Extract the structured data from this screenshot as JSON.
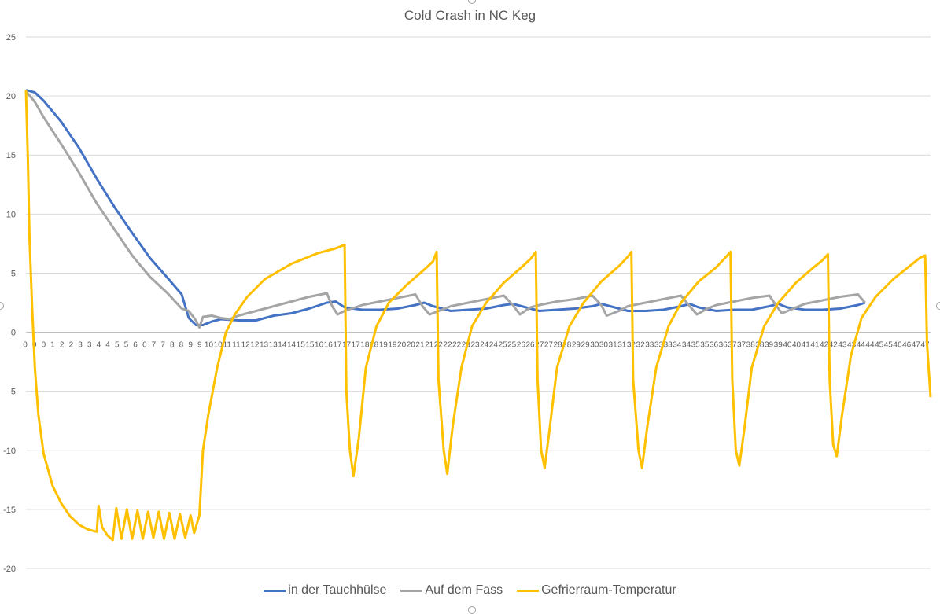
{
  "chart_data": {
    "type": "line",
    "title": "Cold Crash in NC Keg",
    "xlabel": "",
    "ylabel": "",
    "ylim": [
      -20,
      25
    ],
    "yticks": [
      25,
      20,
      15,
      10,
      5,
      0,
      -5,
      -10,
      -15,
      -20
    ],
    "x_tick_labels": [
      "0",
      "0",
      "0",
      "1",
      "2",
      "2",
      "3",
      "3",
      "4",
      "4",
      "5",
      "5",
      "6",
      "6",
      "7",
      "7",
      "8",
      "8",
      "9",
      "9",
      "10",
      "10",
      "11",
      "11",
      "12",
      "12",
      "13",
      "13",
      "14",
      "14",
      "15",
      "15",
      "16",
      "16",
      "17",
      "17",
      "17",
      "18",
      "18",
      "19",
      "19",
      "20",
      "20",
      "21",
      "21",
      "22",
      "22",
      "22",
      "23",
      "23",
      "24",
      "24",
      "25",
      "25",
      "26",
      "26",
      "27",
      "27",
      "28",
      "28",
      "29",
      "29",
      "30",
      "30",
      "31",
      "31",
      "32",
      "32",
      "33",
      "33",
      "33",
      "34",
      "34",
      "35",
      "35",
      "36",
      "36",
      "37",
      "37",
      "38",
      "38",
      "39",
      "39",
      "40",
      "40",
      "41",
      "41",
      "42",
      "42",
      "43",
      "43",
      "44",
      "44",
      "45",
      "45",
      "46",
      "46",
      "47",
      "47"
    ],
    "grid": true,
    "legend_position": "bottom",
    "series": [
      {
        "name": "in der Tauchhülse",
        "color": "#4472C4",
        "points": [
          [
            0,
            20.5
          ],
          [
            0.5,
            20.3
          ],
          [
            1,
            19.6
          ],
          [
            2,
            17.8
          ],
          [
            3,
            15.6
          ],
          [
            4,
            13.0
          ],
          [
            5,
            10.6
          ],
          [
            6,
            8.4
          ],
          [
            7,
            6.3
          ],
          [
            8,
            4.6
          ],
          [
            8.8,
            3.2
          ],
          [
            9.2,
            1.2
          ],
          [
            9.6,
            0.6
          ],
          [
            10.0,
            0.6
          ],
          [
            10.5,
            0.9
          ],
          [
            11,
            1.1
          ],
          [
            12,
            1.0
          ],
          [
            13,
            1.0
          ],
          [
            14,
            1.4
          ],
          [
            15,
            1.6
          ],
          [
            16,
            2.0
          ],
          [
            17,
            2.5
          ],
          [
            17.5,
            2.6
          ],
          [
            18,
            2.1
          ],
          [
            19,
            1.9
          ],
          [
            20,
            1.9
          ],
          [
            21,
            2.0
          ],
          [
            22,
            2.3
          ],
          [
            22.5,
            2.5
          ],
          [
            23,
            2.2
          ],
          [
            24,
            1.8
          ],
          [
            25,
            1.9
          ],
          [
            26,
            2.0
          ],
          [
            27,
            2.3
          ],
          [
            27.5,
            2.4
          ],
          [
            28,
            2.2
          ],
          [
            29,
            1.8
          ],
          [
            30,
            1.9
          ],
          [
            31,
            2.0
          ],
          [
            32,
            2.2
          ],
          [
            32.5,
            2.4
          ],
          [
            33,
            2.2
          ],
          [
            34,
            1.8
          ],
          [
            35,
            1.8
          ],
          [
            36,
            1.9
          ],
          [
            37,
            2.2
          ],
          [
            37.5,
            2.4
          ],
          [
            38,
            2.1
          ],
          [
            39,
            1.8
          ],
          [
            40,
            1.9
          ],
          [
            41,
            1.9
          ],
          [
            42,
            2.2
          ],
          [
            42.5,
            2.4
          ],
          [
            43,
            2.1
          ],
          [
            44,
            1.9
          ],
          [
            45,
            1.9
          ],
          [
            46,
            2.0
          ],
          [
            47,
            2.3
          ],
          [
            47.4,
            2.5
          ]
        ]
      },
      {
        "name": "Auf dem Fass",
        "color": "#A5A5A5",
        "points": [
          [
            0,
            20.4
          ],
          [
            0.5,
            19.5
          ],
          [
            1,
            18.2
          ],
          [
            2,
            15.9
          ],
          [
            3,
            13.5
          ],
          [
            4,
            10.9
          ],
          [
            5,
            8.7
          ],
          [
            6,
            6.5
          ],
          [
            7,
            4.7
          ],
          [
            8,
            3.3
          ],
          [
            8.8,
            2.0
          ],
          [
            9.2,
            1.8
          ],
          [
            9.6,
            1.0
          ],
          [
            9.8,
            0.4
          ],
          [
            10.0,
            1.3
          ],
          [
            10.5,
            1.4
          ],
          [
            11,
            1.2
          ],
          [
            11.5,
            1.1
          ],
          [
            12,
            1.4
          ],
          [
            13,
            1.8
          ],
          [
            14,
            2.2
          ],
          [
            15,
            2.6
          ],
          [
            16,
            3.0
          ],
          [
            17,
            3.3
          ],
          [
            17.3,
            2.2
          ],
          [
            17.6,
            1.5
          ],
          [
            18,
            1.8
          ],
          [
            19,
            2.3
          ],
          [
            20,
            2.6
          ],
          [
            21,
            2.9
          ],
          [
            22,
            3.2
          ],
          [
            22.4,
            2.2
          ],
          [
            22.8,
            1.5
          ],
          [
            23.5,
            1.9
          ],
          [
            24,
            2.2
          ],
          [
            25,
            2.5
          ],
          [
            26,
            2.8
          ],
          [
            27,
            3.1
          ],
          [
            27.5,
            2.3
          ],
          [
            27.9,
            1.5
          ],
          [
            28.5,
            2.1
          ],
          [
            29,
            2.3
          ],
          [
            30,
            2.6
          ],
          [
            31,
            2.8
          ],
          [
            32,
            3.1
          ],
          [
            32.5,
            2.3
          ],
          [
            32.8,
            1.4
          ],
          [
            33.5,
            1.8
          ],
          [
            34,
            2.2
          ],
          [
            35,
            2.5
          ],
          [
            36,
            2.8
          ],
          [
            37,
            3.1
          ],
          [
            37.5,
            2.2
          ],
          [
            37.9,
            1.5
          ],
          [
            38.5,
            2.0
          ],
          [
            39,
            2.3
          ],
          [
            40,
            2.6
          ],
          [
            41,
            2.9
          ],
          [
            42,
            3.1
          ],
          [
            42.4,
            2.2
          ],
          [
            42.7,
            1.6
          ],
          [
            43.5,
            2.1
          ],
          [
            44,
            2.4
          ],
          [
            45,
            2.7
          ],
          [
            46,
            3.0
          ],
          [
            47,
            3.2
          ],
          [
            47.4,
            2.5
          ]
        ]
      },
      {
        "name": "Gefrierraum-Temperatur",
        "color": "#FFC000",
        "points": [
          [
            0,
            20.5
          ],
          [
            0.1,
            15
          ],
          [
            0.2,
            8
          ],
          [
            0.35,
            2
          ],
          [
            0.5,
            -3
          ],
          [
            0.7,
            -7
          ],
          [
            1,
            -10.3
          ],
          [
            1.5,
            -13.0
          ],
          [
            2,
            -14.5
          ],
          [
            2.5,
            -15.6
          ],
          [
            3,
            -16.3
          ],
          [
            3.5,
            -16.7
          ],
          [
            4,
            -16.9
          ],
          [
            4.1,
            -14.7
          ],
          [
            4.3,
            -16.5
          ],
          [
            4.6,
            -17.2
          ],
          [
            4.9,
            -17.6
          ],
          [
            5.1,
            -14.9
          ],
          [
            5.4,
            -17.5
          ],
          [
            5.7,
            -15.0
          ],
          [
            6.0,
            -17.5
          ],
          [
            6.3,
            -15.1
          ],
          [
            6.6,
            -17.5
          ],
          [
            6.9,
            -15.2
          ],
          [
            7.2,
            -17.4
          ],
          [
            7.5,
            -15.2
          ],
          [
            7.8,
            -17.5
          ],
          [
            8.1,
            -15.3
          ],
          [
            8.4,
            -17.5
          ],
          [
            8.7,
            -15.4
          ],
          [
            9.0,
            -17.4
          ],
          [
            9.3,
            -15.5
          ],
          [
            9.5,
            -17.0
          ],
          [
            9.8,
            -15.5
          ],
          [
            10.0,
            -10
          ],
          [
            10.3,
            -7
          ],
          [
            10.8,
            -3
          ],
          [
            11.3,
            0
          ],
          [
            11.8,
            1.5
          ],
          [
            12.5,
            3.0
          ],
          [
            13.5,
            4.5
          ],
          [
            15,
            5.8
          ],
          [
            16.5,
            6.7
          ],
          [
            17.5,
            7.1
          ],
          [
            18,
            7.4
          ],
          [
            18.1,
            -5
          ],
          [
            18.3,
            -10
          ],
          [
            18.5,
            -12.2
          ],
          [
            18.8,
            -9
          ],
          [
            19.2,
            -3
          ],
          [
            19.8,
            0.5
          ],
          [
            20.5,
            2.5
          ],
          [
            21.5,
            4.0
          ],
          [
            22.5,
            5.3
          ],
          [
            23,
            6.0
          ],
          [
            23.2,
            6.8
          ],
          [
            23.3,
            -4
          ],
          [
            23.6,
            -10
          ],
          [
            23.8,
            -12.0
          ],
          [
            24.1,
            -8
          ],
          [
            24.6,
            -3
          ],
          [
            25.2,
            0.5
          ],
          [
            26,
            2.5
          ],
          [
            27,
            4.2
          ],
          [
            28,
            5.5
          ],
          [
            28.5,
            6.2
          ],
          [
            28.8,
            6.8
          ],
          [
            28.9,
            -4
          ],
          [
            29.1,
            -10
          ],
          [
            29.3,
            -11.5
          ],
          [
            29.6,
            -8
          ],
          [
            30,
            -3
          ],
          [
            30.7,
            0.5
          ],
          [
            31.5,
            2.5
          ],
          [
            32.5,
            4.3
          ],
          [
            33.5,
            5.6
          ],
          [
            34,
            6.4
          ],
          [
            34.2,
            6.8
          ],
          [
            34.3,
            -4
          ],
          [
            34.6,
            -10
          ],
          [
            34.8,
            -11.5
          ],
          [
            35.1,
            -8
          ],
          [
            35.6,
            -3
          ],
          [
            36.3,
            0.5
          ],
          [
            37,
            2.5
          ],
          [
            38,
            4.3
          ],
          [
            39,
            5.5
          ],
          [
            39.5,
            6.3
          ],
          [
            39.8,
            6.8
          ],
          [
            39.9,
            -4
          ],
          [
            40.1,
            -10
          ],
          [
            40.3,
            -11.3
          ],
          [
            40.6,
            -8
          ],
          [
            41,
            -3
          ],
          [
            41.7,
            0.5
          ],
          [
            42.5,
            2.5
          ],
          [
            43.5,
            4.2
          ],
          [
            44.5,
            5.5
          ],
          [
            45,
            6.1
          ],
          [
            45.3,
            6.6
          ],
          [
            45.4,
            -4
          ],
          [
            45.6,
            -9.5
          ],
          [
            45.8,
            -10.5
          ],
          [
            46.1,
            -7
          ],
          [
            46.6,
            -2
          ],
          [
            47.2,
            1.2
          ],
          [
            48,
            3
          ],
          [
            49,
            4.5
          ],
          [
            50,
            5.7
          ],
          [
            50.5,
            6.3
          ],
          [
            50.8,
            6.5
          ],
          [
            50.9,
            -1
          ],
          [
            51.1,
            -5.5
          ]
        ]
      }
    ]
  }
}
